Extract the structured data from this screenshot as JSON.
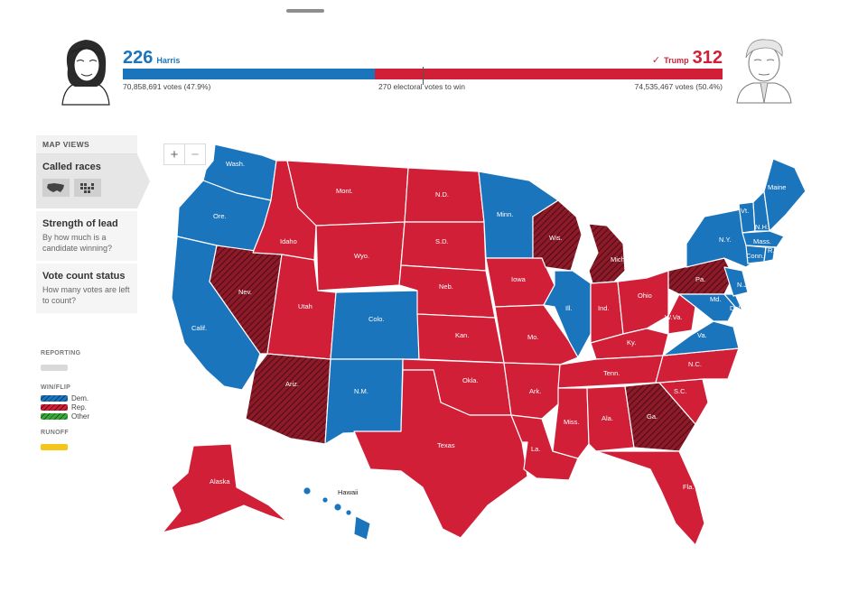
{
  "header": {
    "harris": {
      "electoral_votes": "226",
      "name": "Harris",
      "popular_votes": "70,858,691 votes (47.9%)"
    },
    "trump": {
      "electoral_votes": "312",
      "name": "Trump",
      "check": "✓",
      "popular_votes": "74,535,467 votes (50.4%)"
    },
    "threshold_label": "270 electoral votes to win",
    "dem_share": 0.42
  },
  "panel": {
    "heading": "MAP VIEWS",
    "views": [
      {
        "title": "Called races",
        "subtitle": ""
      },
      {
        "title": "Strength of lead",
        "subtitle": "By how much is a candidate winning?"
      },
      {
        "title": "Vote count status",
        "subtitle": "How many votes are left to count?"
      }
    ]
  },
  "legend": {
    "reporting": "REPORTING",
    "win_flip": "WIN/FLIP",
    "dem": "Dem.",
    "rep": "Rep.",
    "other": "Other",
    "runoff": "RUNOFF"
  },
  "zoom": {
    "plus": "+",
    "minus": "−"
  },
  "colors": {
    "dem": "#1a75bd",
    "rep": "#d01f37",
    "rep_flip": "#8c1a28",
    "other": "#3ca83c",
    "reporting": "#d9d9d9",
    "runoff": "#f5c51c"
  },
  "map_labels": {
    "wash": "Wash.",
    "ore": "Ore.",
    "calif": "Calif.",
    "nev": "Nev.",
    "idaho": "Idaho",
    "mont": "Mont.",
    "wyo": "Wyo.",
    "utah": "Utah",
    "colo": "Colo.",
    "ariz": "Ariz.",
    "nm": "N.M.",
    "nd": "N.D.",
    "sd": "S.D.",
    "neb": "Neb.",
    "kan": "Kan.",
    "okla": "Okla.",
    "texas": "Texas",
    "minn": "Minn.",
    "iowa": "Iowa",
    "mo": "Mo.",
    "ark": "Ark.",
    "la": "La.",
    "wis": "Wis.",
    "ill": "Ill.",
    "mich": "Mich.",
    "ind": "Ind.",
    "ohio": "Ohio",
    "ky": "Ky.",
    "tenn": "Tenn.",
    "miss": "Miss.",
    "ala": "Ala.",
    "ga": "Ga.",
    "fla": "Fla.",
    "sc": "S.C.",
    "nc": "N.C.",
    "va": "Va.",
    "wva": "W.Va.",
    "pa": "Pa.",
    "ny": "N.Y.",
    "md": "Md.",
    "del": "Del.",
    "nj": "N.J.",
    "conn": "Conn.",
    "ri": "R.I.",
    "mass": "Mass.",
    "vt": "Vt.",
    "nh": "N.H.",
    "maine": "Maine",
    "alaska": "Alaska",
    "hawaii": "Hawaii"
  }
}
